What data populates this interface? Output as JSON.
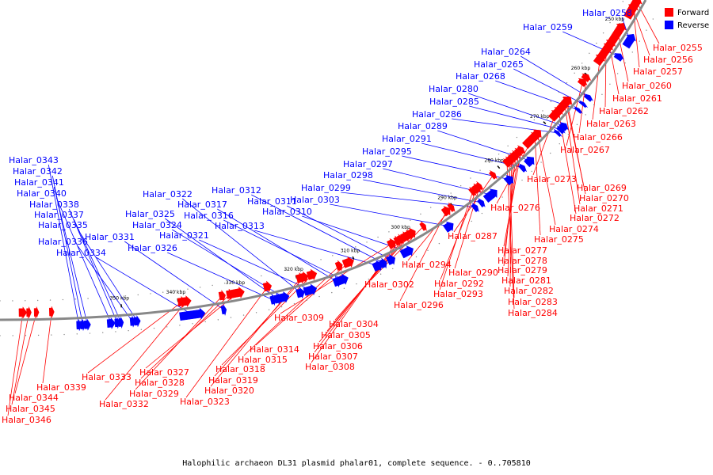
{
  "caption": "Halophilic archaeon DL31 plasmid phalar01, complete sequence. - 0..705810",
  "legend": [
    {
      "label": "Forward",
      "color": "#ff0000"
    },
    {
      "label": "Reverse",
      "color": "#0000ff"
    }
  ],
  "colors": {
    "forward": "#ff0000",
    "reverse": "#0000ff",
    "backbone": "#888888",
    "leader_forward": "#ff0000",
    "leader_reverse": "#0000ff"
  },
  "ticks": [
    "250 kbp",
    "260 kbp",
    "270 kbp",
    "280 kbp",
    "290 kbp",
    "300 kbp",
    "310 kbp",
    "320 kbp",
    "330 kbp",
    "340 kbp",
    "350 kbp"
  ],
  "reverse_labels": [
    "Halar_0258",
    "Halar_0259",
    "Halar_0264",
    "Halar_0265",
    "Halar_0268",
    "Halar_0280",
    "Halar_0285",
    "Halar_0286",
    "Halar_0289",
    "Halar_0291",
    "Halar_0295",
    "Halar_0297",
    "Halar_0298",
    "Halar_0299",
    "Halar_0303",
    "Halar_0310",
    "Halar_0311",
    "Halar_0312",
    "Halar_0313",
    "Halar_0316",
    "Halar_0317",
    "Halar_0321",
    "Halar_0322",
    "Halar_0324",
    "Halar_0325",
    "Halar_0326",
    "Halar_0331",
    "Halar_0334",
    "Halar_0335",
    "Halar_0336",
    "Halar_0337",
    "Halar_0338",
    "Halar_0340",
    "Halar_0341",
    "Halar_0342",
    "Halar_0343"
  ],
  "forward_labels": [
    "Halar_0255",
    "Halar_0256",
    "Halar_0257",
    "Halar_0260",
    "Halar_0261",
    "Halar_0262",
    "Halar_0263",
    "Halar_0266",
    "Halar_0267",
    "Halar_0269",
    "Halar_0270",
    "Halar_0271",
    "Halar_0272",
    "Halar_0273",
    "Halar_0274",
    "Halar_0275",
    "Halar_0276",
    "Halar_0277",
    "Halar_0278",
    "Halar_0279",
    "Halar_0281",
    "Halar_0282",
    "Halar_0283",
    "Halar_0284",
    "Halar_0287",
    "Halar_0290",
    "Halar_0292",
    "Halar_0293",
    "Halar_0294",
    "Halar_0296",
    "Halar_0302",
    "Halar_0304",
    "Halar_0305",
    "Halar_0306",
    "Halar_0307",
    "Halar_0308",
    "Halar_0309",
    "Halar_0314",
    "Halar_0315",
    "Halar_0318",
    "Halar_0319",
    "Halar_0320",
    "Halar_0323",
    "Halar_0327",
    "Halar_0328",
    "Halar_0329",
    "Halar_0332",
    "Halar_0333",
    "Halar_0339",
    "Halar_0344",
    "Halar_0345",
    "Halar_0346"
  ]
}
